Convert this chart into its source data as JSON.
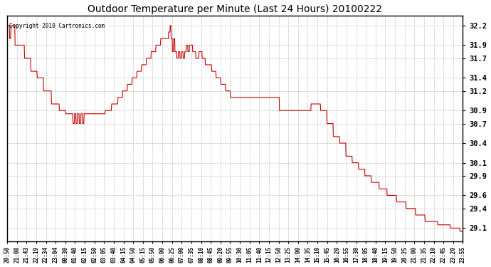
{
  "title": "Outdoor Temperature per Minute (Last 24 Hours) 20100222",
  "copyright_text": "Copyright 2010 Cartronics.com",
  "line_color": "#cc0000",
  "background_color": "#ffffff",
  "grid_color": "#bbbbbb",
  "y_ticks": [
    29.1,
    29.4,
    29.6,
    29.9,
    30.1,
    30.4,
    30.7,
    30.9,
    31.2,
    31.4,
    31.7,
    31.9,
    32.2
  ],
  "ylim_min": 28.9,
  "ylim_max": 32.35,
  "x_tick_labels": [
    "20:58",
    "21:08",
    "21:43",
    "22:19",
    "22:34",
    "23:04",
    "00:30",
    "01:40",
    "02:15",
    "02:50",
    "03:05",
    "03:40",
    "04:15",
    "04:50",
    "05:15",
    "05:50",
    "06:00",
    "06:25",
    "07:00",
    "07:35",
    "08:10",
    "08:45",
    "09:20",
    "09:55",
    "10:30",
    "11:05",
    "11:40",
    "12:15",
    "12:50",
    "13:25",
    "14:00",
    "14:35",
    "15:10",
    "15:45",
    "16:20",
    "16:55",
    "17:30",
    "18:05",
    "18:40",
    "19:15",
    "19:50",
    "20:25",
    "21:00",
    "21:35",
    "22:10",
    "22:45",
    "23:20",
    "23:55"
  ],
  "figwidth": 6.9,
  "figheight": 3.75,
  "dpi": 100
}
